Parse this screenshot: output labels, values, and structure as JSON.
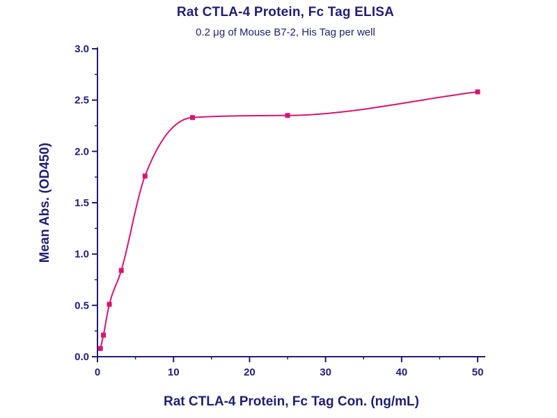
{
  "chart_data": {
    "type": "scatter",
    "title": "Rat CTLA-4 Protein, Fc Tag ELISA",
    "subtitle": "0.2 μg of Mouse B7-2, His Tag per well",
    "xlabel": "Rat CTLA-4 Protein, Fc Tag Con. (ng/mL)",
    "ylabel": "Mean Abs. (OD450)",
    "x": [
      0.39,
      0.78,
      1.56,
      3.13,
      6.25,
      12.5,
      25,
      50
    ],
    "y": [
      0.08,
      0.21,
      0.51,
      0.84,
      1.76,
      2.33,
      2.35,
      2.58
    ],
    "fit": "4PL sigmoidal fit curve",
    "xlim": [
      0,
      51
    ],
    "ylim": [
      0,
      3.0
    ],
    "x_ticks": [
      0,
      10,
      20,
      30,
      40,
      50
    ],
    "x_minor_ticks": [
      5,
      15,
      25,
      35,
      45
    ],
    "y_ticks": [
      "0.0",
      "0.5",
      "1.0",
      "1.5",
      "2.0",
      "2.5",
      "3.0"
    ],
    "y_minor_ticks": [
      0.25,
      0.75,
      1.25,
      1.75,
      2.25,
      2.75
    ],
    "grid": "off",
    "legend": "none",
    "colors": {
      "curve": "#D81470",
      "point": "#D81470",
      "axis": "#1F1F72",
      "text": "#1F1F72",
      "background": "#FFFFFF"
    }
  }
}
